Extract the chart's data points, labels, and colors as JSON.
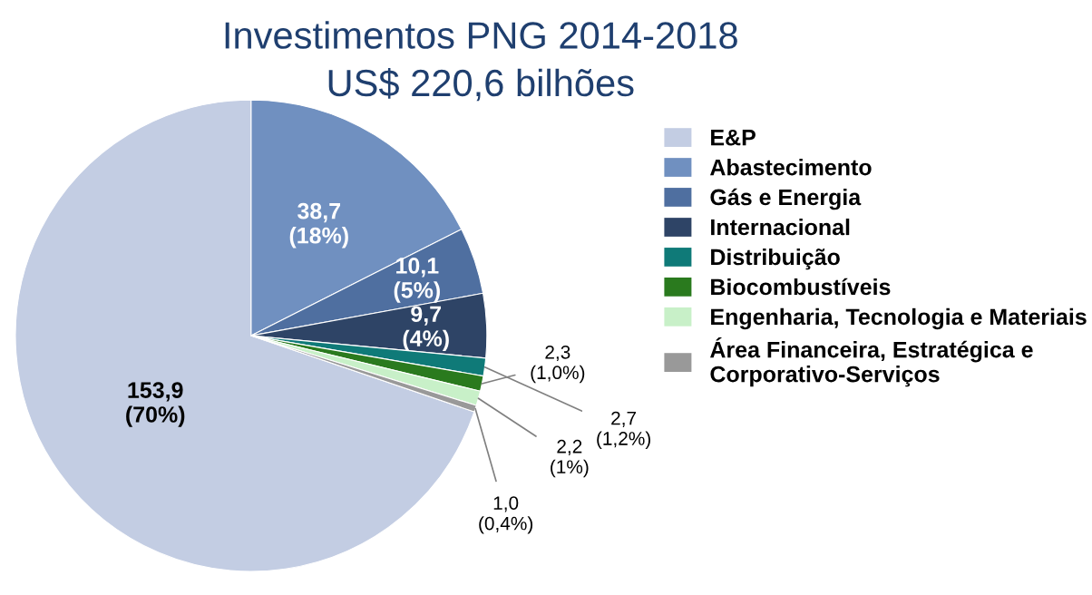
{
  "chart_data": {
    "type": "pie",
    "title": "Investimentos PNG 2014-2018",
    "subtitle": "US$ 220,6 bilhões",
    "categories": [
      "E&P",
      "Abastecimento",
      "Gás e Energia",
      "Internacional",
      "Distribuição",
      "Biocombustíveis",
      "Engenharia, Tecnologia e Materiais",
      "Área Financeira, Estratégica e\nCorporativo-Serviços"
    ],
    "values": [
      153.9,
      38.7,
      10.1,
      9.7,
      2.7,
      2.3,
      2.2,
      1.0
    ],
    "colors": [
      "#c3cde3",
      "#7090c0",
      "#4f6fa0",
      "#2e4466",
      "#0f7a78",
      "#2a7a1e",
      "#c8f0c8",
      "#999999"
    ],
    "value_labels": [
      "153,9\n(70%)",
      "38,7\n(18%)",
      "10,1\n(5%)",
      "9,7\n(4%)",
      "2,7\n(1,2%)",
      "2,3\n(1,0%)",
      "2,2\n(1%)",
      "1,0\n(0,4%)"
    ],
    "legend": "right"
  }
}
